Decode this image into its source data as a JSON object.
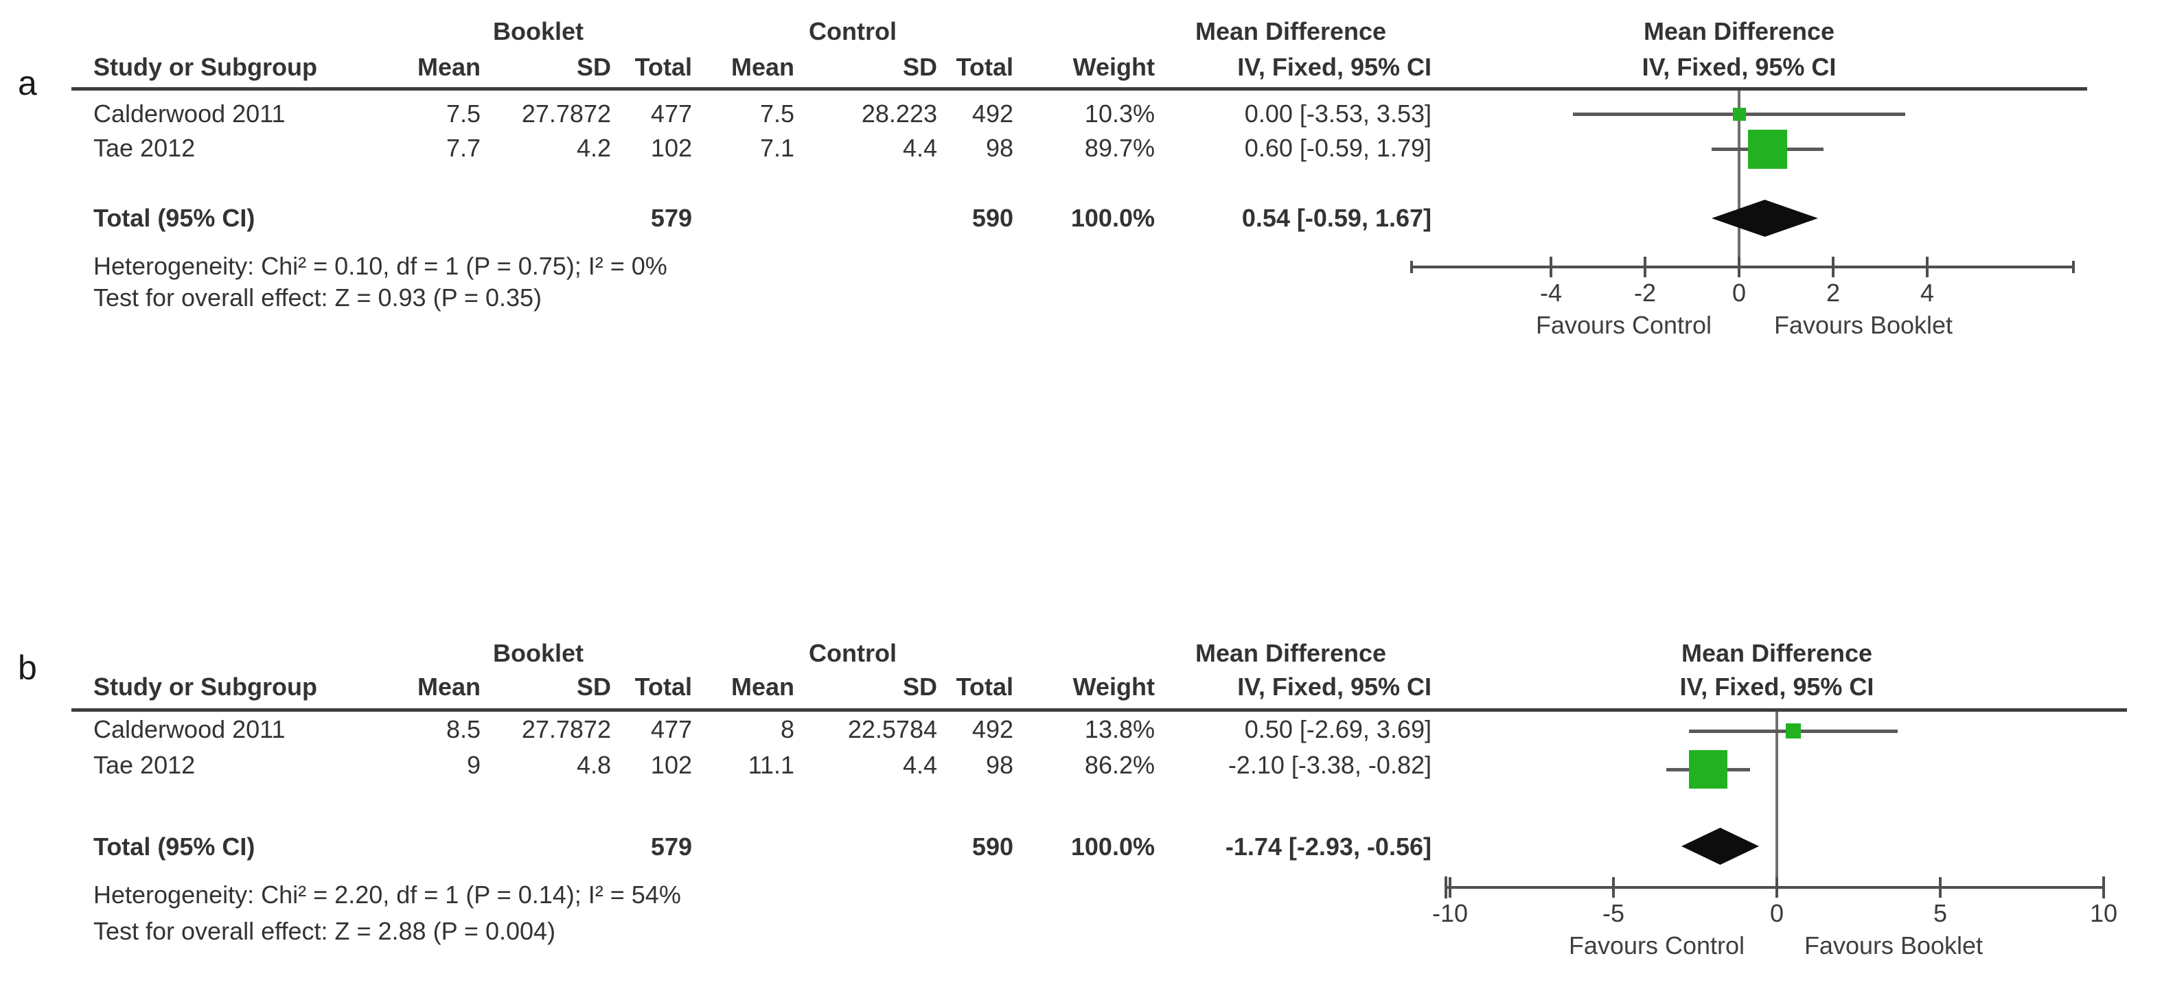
{
  "colors": {
    "marker_green": "#21b121",
    "diamond_black": "#0d0d0d",
    "line_gray": "#5a5a5a",
    "axis_gray": "#4f4f4f"
  },
  "figure": {
    "panels": [
      {
        "label": "a",
        "table": {
          "group_booklet": "Booklet",
          "group_control": "Control",
          "group_md": "Mean Difference",
          "col_study": "Study or Subgroup",
          "col_mean1": "Mean",
          "col_sd1": "SD",
          "col_total1": "Total",
          "col_mean2": "Mean",
          "col_sd2": "SD",
          "col_total2": "Total",
          "col_weight": "Weight",
          "col_iv": "IV, Fixed, 95% CI",
          "rows": [
            {
              "study": "Calderwood 2011",
              "mean1": "7.5",
              "sd1": "27.7872",
              "total1": "477",
              "mean2": "7.5",
              "sd2": "28.223",
              "total2": "492",
              "weight": "10.3%",
              "ci": "0.00 [-3.53, 3.53]"
            },
            {
              "study": "Tae 2012",
              "mean1": "7.7",
              "sd1": "4.2",
              "total1": "102",
              "mean2": "7.1",
              "sd2": "4.4",
              "total2": "98",
              "weight": "89.7%",
              "ci": "0.60 [-0.59, 1.79]"
            }
          ],
          "total_row": {
            "label": "Total (95% CI)",
            "total1": "579",
            "total2": "590",
            "weight": "100.0%",
            "ci": "0.54 [-0.59, 1.67]"
          },
          "heterogeneity": "Heterogeneity: Chi² = 0.10, df = 1 (P = 0.75); I² = 0%",
          "overall_effect": "Test for overall effect: Z = 0.93 (P = 0.35)"
        },
        "plot": {
          "title": "Mean Difference",
          "subtitle": "IV, Fixed, 95% CI",
          "favours_left": "Favours Control",
          "favours_right": "Favours Booklet"
        }
      },
      {
        "label": "b",
        "table": {
          "group_booklet": "Booklet",
          "group_control": "Control",
          "group_md": "Mean Difference",
          "col_study": "Study or Subgroup",
          "col_mean1": "Mean",
          "col_sd1": "SD",
          "col_total1": "Total",
          "col_mean2": "Mean",
          "col_sd2": "SD",
          "col_total2": "Total",
          "col_weight": "Weight",
          "col_iv": "IV, Fixed, 95% CI",
          "rows": [
            {
              "study": "Calderwood 2011",
              "mean1": "8.5",
              "sd1": "27.7872",
              "total1": "477",
              "mean2": "8",
              "sd2": "22.5784",
              "total2": "492",
              "weight": "13.8%",
              "ci": "0.50 [-2.69, 3.69]"
            },
            {
              "study": "Tae 2012",
              "mean1": "9",
              "sd1": "4.8",
              "total1": "102",
              "mean2": "11.1",
              "sd2": "4.4",
              "total2": "98",
              "weight": "86.2%",
              "ci": "-2.10 [-3.38, -0.82]"
            }
          ],
          "total_row": {
            "label": "Total (95% CI)",
            "total1": "579",
            "total2": "590",
            "weight": "100.0%",
            "ci": "-1.74 [-2.93, -0.56]"
          },
          "heterogeneity": "Heterogeneity: Chi² = 2.20, df = 1 (P = 0.14); I² = 54%",
          "overall_effect": "Test for overall effect: Z = 2.88 (P = 0.004)"
        },
        "plot": {
          "title": "Mean Difference",
          "subtitle": "IV, Fixed, 95% CI",
          "favours_left": "Favours Control",
          "favours_right": "Favours Booklet"
        }
      }
    ]
  },
  "chart_data": [
    {
      "type": "scatter",
      "subtype": "forest-plot",
      "panel": "a",
      "effect_measure": "Mean Difference, IV, Fixed, 95% CI",
      "studies": [
        {
          "name": "Calderwood 2011",
          "md": 0.0,
          "ci_low": -3.53,
          "ci_high": 3.53,
          "weight_pct": 10.3
        },
        {
          "name": "Tae 2012",
          "md": 0.6,
          "ci_low": -0.59,
          "ci_high": 1.79,
          "weight_pct": 89.7
        }
      ],
      "total": {
        "name": "Total (95% CI)",
        "md": 0.54,
        "ci_low": -0.59,
        "ci_high": 1.67
      },
      "heterogeneity": {
        "chi2": 0.1,
        "df": 1,
        "p": 0.75,
        "i2_pct": 0
      },
      "overall_effect": {
        "z": 0.93,
        "p": 0.35
      },
      "axis": {
        "ticks": [
          -4,
          -2,
          0,
          2,
          4
        ],
        "xlim": [
          -7,
          7.1
        ]
      },
      "xlabel_left": "Favours Control",
      "xlabel_right": "Favours Booklet"
    },
    {
      "type": "scatter",
      "subtype": "forest-plot",
      "panel": "b",
      "effect_measure": "Mean Difference, IV, Fixed, 95% CI",
      "studies": [
        {
          "name": "Calderwood 2011",
          "md": 0.5,
          "ci_low": -2.69,
          "ci_high": 3.69,
          "weight_pct": 13.8
        },
        {
          "name": "Tae 2012",
          "md": -2.1,
          "ci_low": -3.38,
          "ci_high": -0.82,
          "weight_pct": 86.2
        }
      ],
      "total": {
        "name": "Total (95% CI)",
        "md": -1.74,
        "ci_low": -2.93,
        "ci_high": -0.56
      },
      "heterogeneity": {
        "chi2": 2.2,
        "df": 1,
        "p": 0.14,
        "i2_pct": 54
      },
      "overall_effect": {
        "z": 2.88,
        "p": 0.004
      },
      "axis": {
        "ticks": [
          -10,
          -5,
          0,
          5,
          10
        ],
        "xlim": [
          -10.1,
          10.1
        ]
      },
      "xlabel_left": "Favours Control",
      "xlabel_right": "Favours Booklet"
    }
  ]
}
